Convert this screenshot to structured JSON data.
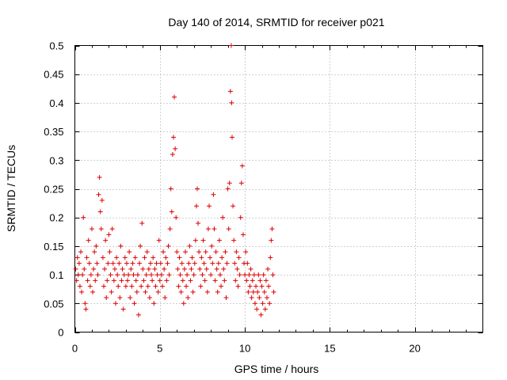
{
  "chart_data": {
    "type": "scatter",
    "title": "Day 140 of 2014, SRMTID for receiver p021",
    "xlabel": "GPS time / hours",
    "ylabel": "SRMTID / TECUs",
    "xlim": [
      0,
      24
    ],
    "ylim": [
      0,
      0.5
    ],
    "xticks": [
      0,
      5,
      10,
      15,
      20
    ],
    "xtick_labels": [
      "0",
      "5",
      "10",
      "15",
      "20"
    ],
    "yticks": [
      0,
      0.05,
      0.1,
      0.15,
      0.2,
      0.25,
      0.3,
      0.35,
      0.4,
      0.45,
      0.5
    ],
    "ytick_labels": [
      "0",
      "0.05",
      "0.1",
      "0.15",
      "0.2",
      "0.25",
      "0.3",
      "0.35",
      "0.4",
      "0.45",
      "0.5"
    ],
    "grid": true,
    "marker": "plus",
    "color": "#dd0000",
    "series": [
      {
        "points": [
          [
            0.05,
            0.11
          ],
          [
            0.1,
            0.09
          ],
          [
            0.15,
            0.13
          ],
          [
            0.2,
            0.1
          ],
          [
            0.25,
            0.12
          ],
          [
            0.3,
            0.08
          ],
          [
            0.35,
            0.14
          ],
          [
            0.4,
            0.07
          ],
          [
            0.45,
            0.1
          ],
          [
            0.5,
            0.2
          ],
          [
            0.55,
            0.11
          ],
          [
            0.6,
            0.05
          ],
          [
            0.65,
            0.04
          ],
          [
            0.7,
            0.13
          ],
          [
            0.75,
            0.09
          ],
          [
            0.8,
            0.16
          ],
          [
            0.85,
            0.12
          ],
          [
            0.9,
            0.08
          ],
          [
            0.95,
            0.1
          ],
          [
            1.0,
            0.18
          ],
          [
            1.05,
            0.07
          ],
          [
            1.1,
            0.11
          ],
          [
            1.15,
            0.14
          ],
          [
            1.2,
            0.09
          ],
          [
            1.25,
            0.15
          ],
          [
            1.3,
            0.12
          ],
          [
            1.35,
            0.1
          ],
          [
            1.4,
            0.24
          ],
          [
            1.45,
            0.27
          ],
          [
            1.5,
            0.21
          ],
          [
            1.55,
            0.18
          ],
          [
            1.6,
            0.23
          ],
          [
            1.65,
            0.13
          ],
          [
            1.7,
            0.08
          ],
          [
            1.75,
            0.11
          ],
          [
            1.8,
            0.16
          ],
          [
            1.85,
            0.06
          ],
          [
            1.9,
            0.09
          ],
          [
            1.95,
            0.12
          ],
          [
            2.0,
            0.17
          ],
          [
            2.05,
            0.14
          ],
          [
            2.1,
            0.1
          ],
          [
            2.15,
            0.07
          ],
          [
            2.2,
            0.18
          ],
          [
            2.25,
            0.12
          ],
          [
            2.3,
            0.09
          ],
          [
            2.35,
            0.11
          ],
          [
            2.4,
            0.05
          ],
          [
            2.45,
            0.13
          ],
          [
            2.5,
            0.1
          ],
          [
            2.55,
            0.08
          ],
          [
            2.6,
            0.12
          ],
          [
            2.65,
            0.06
          ],
          [
            2.7,
            0.15
          ],
          [
            2.75,
            0.09
          ],
          [
            2.8,
            0.11
          ],
          [
            2.85,
            0.04
          ],
          [
            2.9,
            0.1
          ],
          [
            2.95,
            0.13
          ],
          [
            3.0,
            0.08
          ],
          [
            3.05,
            0.12
          ],
          [
            3.1,
            0.09
          ],
          [
            3.15,
            0.1
          ],
          [
            3.2,
            0.14
          ],
          [
            3.25,
            0.06
          ],
          [
            3.3,
            0.11
          ],
          [
            3.35,
            0.08
          ],
          [
            3.4,
            0.12
          ],
          [
            3.45,
            0.1
          ],
          [
            3.5,
            0.05
          ],
          [
            3.55,
            0.13
          ],
          [
            3.6,
            0.09
          ],
          [
            3.65,
            0.07
          ],
          [
            3.7,
            0.1
          ],
          [
            3.75,
            0.03
          ],
          [
            3.8,
            0.12
          ],
          [
            3.85,
            0.15
          ],
          [
            3.9,
            0.08
          ],
          [
            3.95,
            0.19
          ],
          [
            4.0,
            0.11
          ],
          [
            4.05,
            0.09
          ],
          [
            4.1,
            0.13
          ],
          [
            4.15,
            0.07
          ],
          [
            4.2,
            0.1
          ],
          [
            4.25,
            0.14
          ],
          [
            4.3,
            0.08
          ],
          [
            4.35,
            0.11
          ],
          [
            4.4,
            0.06
          ],
          [
            4.45,
            0.12
          ],
          [
            4.5,
            0.1
          ],
          [
            4.55,
            0.09
          ],
          [
            4.6,
            0.13
          ],
          [
            4.65,
            0.05
          ],
          [
            4.7,
            0.11
          ],
          [
            4.75,
            0.08
          ],
          [
            4.8,
            0.12
          ],
          [
            4.85,
            0.1
          ],
          [
            4.9,
            0.07
          ],
          [
            4.95,
            0.16
          ],
          [
            5.0,
            0.09
          ],
          [
            5.05,
            0.12
          ],
          [
            5.1,
            0.1
          ],
          [
            5.15,
            0.08
          ],
          [
            5.2,
            0.14
          ],
          [
            5.25,
            0.11
          ],
          [
            5.3,
            0.06
          ],
          [
            5.35,
            0.13
          ],
          [
            5.4,
            0.09
          ],
          [
            5.45,
            0.12
          ],
          [
            5.5,
            0.15
          ],
          [
            5.55,
            0.1
          ],
          [
            5.6,
            0.18
          ],
          [
            5.65,
            0.25
          ],
          [
            5.7,
            0.21
          ],
          [
            5.75,
            0.31
          ],
          [
            5.8,
            0.34
          ],
          [
            5.85,
            0.41
          ],
          [
            5.9,
            0.32
          ],
          [
            5.95,
            0.2
          ],
          [
            6.0,
            0.14
          ],
          [
            6.05,
            0.11
          ],
          [
            6.1,
            0.08
          ],
          [
            6.15,
            0.13
          ],
          [
            6.2,
            0.1
          ],
          [
            6.25,
            0.07
          ],
          [
            6.3,
            0.12
          ],
          [
            6.35,
            0.09
          ],
          [
            6.4,
            0.05
          ],
          [
            6.45,
            0.11
          ],
          [
            6.5,
            0.14
          ],
          [
            6.55,
            0.08
          ],
          [
            6.6,
            0.1
          ],
          [
            6.65,
            0.06
          ],
          [
            6.7,
            0.12
          ],
          [
            6.75,
            0.15
          ],
          [
            6.8,
            0.09
          ],
          [
            6.85,
            0.11
          ],
          [
            6.9,
            0.13
          ],
          [
            6.95,
            0.07
          ],
          [
            7.0,
            0.1
          ],
          [
            7.05,
            0.12
          ],
          [
            7.1,
            0.16
          ],
          [
            7.15,
            0.22
          ],
          [
            7.2,
            0.25
          ],
          [
            7.25,
            0.19
          ],
          [
            7.3,
            0.14
          ],
          [
            7.35,
            0.11
          ],
          [
            7.4,
            0.08
          ],
          [
            7.45,
            0.13
          ],
          [
            7.5,
            0.1
          ],
          [
            7.55,
            0.16
          ],
          [
            7.6,
            0.12
          ],
          [
            7.65,
            0.09
          ],
          [
            7.7,
            0.14
          ],
          [
            7.75,
            0.11
          ],
          [
            7.8,
            0.07
          ],
          [
            7.85,
            0.18
          ],
          [
            7.9,
            0.22
          ],
          [
            7.95,
            0.13
          ],
          [
            8.0,
            0.1
          ],
          [
            8.05,
            0.15
          ],
          [
            8.1,
            0.12
          ],
          [
            8.15,
            0.24
          ],
          [
            8.2,
            0.18
          ],
          [
            8.25,
            0.09
          ],
          [
            8.3,
            0.14
          ],
          [
            8.35,
            0.11
          ],
          [
            8.4,
            0.07
          ],
          [
            8.45,
            0.12
          ],
          [
            8.5,
            0.16
          ],
          [
            8.55,
            0.1
          ],
          [
            8.6,
            0.08
          ],
          [
            8.65,
            0.13
          ],
          [
            8.7,
            0.2
          ],
          [
            8.75,
            0.11
          ],
          [
            8.8,
            0.09
          ],
          [
            8.85,
            0.14
          ],
          [
            8.9,
            0.06
          ],
          [
            8.95,
            0.12
          ],
          [
            9.0,
            0.25
          ],
          [
            9.05,
            0.18
          ],
          [
            9.1,
            0.26
          ],
          [
            9.15,
            0.42
          ],
          [
            9.2,
            0.5
          ],
          [
            9.22,
            0.4
          ],
          [
            9.25,
            0.34
          ],
          [
            9.3,
            0.22
          ],
          [
            9.35,
            0.16
          ],
          [
            9.4,
            0.12
          ],
          [
            9.45,
            0.09
          ],
          [
            9.5,
            0.14
          ],
          [
            9.55,
            0.11
          ],
          [
            9.6,
            0.08
          ],
          [
            9.65,
            0.13
          ],
          [
            9.7,
            0.1
          ],
          [
            9.75,
            0.2
          ],
          [
            9.8,
            0.26
          ],
          [
            9.85,
            0.29
          ],
          [
            9.9,
            0.17
          ],
          [
            9.95,
            0.12
          ],
          [
            10.0,
            0.1
          ],
          [
            10.05,
            0.14
          ],
          [
            10.1,
            0.09
          ],
          [
            10.15,
            0.12
          ],
          [
            10.2,
            0.07
          ],
          [
            10.25,
            0.1
          ],
          [
            10.3,
            0.08
          ],
          [
            10.35,
            0.11
          ],
          [
            10.4,
            0.06
          ],
          [
            10.45,
            0.09
          ],
          [
            10.5,
            0.07
          ],
          [
            10.55,
            0.1
          ],
          [
            10.6,
            0.05
          ],
          [
            10.65,
            0.08
          ],
          [
            10.7,
            0.04
          ],
          [
            10.75,
            0.07
          ],
          [
            10.8,
            0.1
          ],
          [
            10.85,
            0.06
          ],
          [
            10.9,
            0.09
          ],
          [
            10.95,
            0.03
          ],
          [
            11.0,
            0.08
          ],
          [
            11.05,
            0.05
          ],
          [
            11.1,
            0.1
          ],
          [
            11.15,
            0.07
          ],
          [
            11.2,
            0.04
          ],
          [
            11.25,
            0.09
          ],
          [
            11.3,
            0.06
          ],
          [
            11.35,
            0.11
          ],
          [
            11.4,
            0.08
          ],
          [
            11.45,
            0.05
          ],
          [
            11.5,
            0.13
          ],
          [
            11.55,
            0.16
          ],
          [
            11.6,
            0.18
          ],
          [
            11.65,
            0.1
          ],
          [
            11.7,
            0.07
          ]
        ]
      }
    ]
  }
}
